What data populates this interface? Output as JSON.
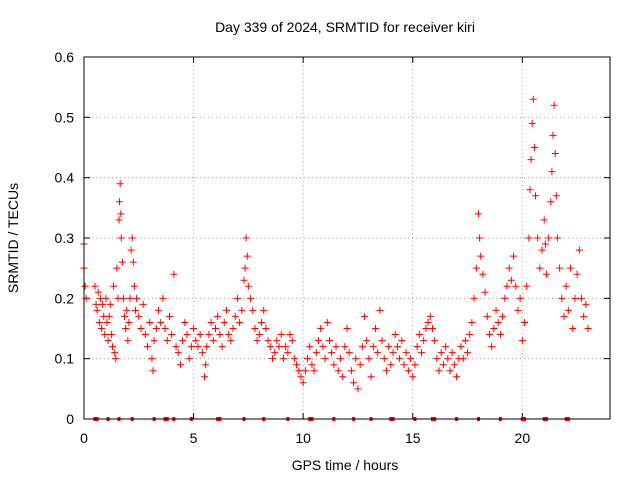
{
  "chart_data": {
    "type": "scatter",
    "title": "Day 339 of 2024, SRMTID for receiver kiri",
    "xlabel": "GPS time / hours",
    "ylabel": "SRMTID / TECUs",
    "xlim": [
      0,
      24
    ],
    "ylim": [
      0,
      0.6
    ],
    "xticks": [
      0,
      5,
      10,
      15,
      20
    ],
    "xtick_labels": [
      "0",
      "5",
      "10",
      "15",
      "20"
    ],
    "yticks": [
      0,
      0.1,
      0.2,
      0.3,
      0.4,
      0.5,
      0.6
    ],
    "ytick_labels": [
      "0",
      "0.1",
      "0.2",
      "0.3",
      "0.4",
      "0.5",
      "0.6"
    ],
    "grid": true,
    "marker": "+",
    "color": "#ff0000",
    "series": [
      {
        "name": "SRMTID",
        "points": [
          [
            0.0,
            0.25
          ],
          [
            0.0,
            0.29
          ],
          [
            0.05,
            0.22
          ],
          [
            0.1,
            0.2
          ],
          [
            0.5,
            0.22
          ],
          [
            0.55,
            0.19
          ],
          [
            0.6,
            0.18
          ],
          [
            0.65,
            0.21
          ],
          [
            0.7,
            0.16
          ],
          [
            0.75,
            0.2
          ],
          [
            0.8,
            0.15
          ],
          [
            0.85,
            0.19
          ],
          [
            0.9,
            0.17
          ],
          [
            0.95,
            0.14
          ],
          [
            1.0,
            0.2
          ],
          [
            1.05,
            0.16
          ],
          [
            1.1,
            0.13
          ],
          [
            1.15,
            0.17
          ],
          [
            1.2,
            0.19
          ],
          [
            1.25,
            0.14
          ],
          [
            1.3,
            0.12
          ],
          [
            1.35,
            0.22
          ],
          [
            1.4,
            0.11
          ],
          [
            1.45,
            0.1
          ],
          [
            1.5,
            0.25
          ],
          [
            1.55,
            0.2
          ],
          [
            1.6,
            0.33
          ],
          [
            1.62,
            0.36
          ],
          [
            1.65,
            0.39
          ],
          [
            1.68,
            0.34
          ],
          [
            1.7,
            0.3
          ],
          [
            1.75,
            0.26
          ],
          [
            1.8,
            0.2
          ],
          [
            1.85,
            0.17
          ],
          [
            1.9,
            0.15
          ],
          [
            1.95,
            0.18
          ],
          [
            2.0,
            0.13
          ],
          [
            2.05,
            0.16
          ],
          [
            2.1,
            0.2
          ],
          [
            2.15,
            0.28
          ],
          [
            2.2,
            0.3
          ],
          [
            2.25,
            0.26
          ],
          [
            2.3,
            0.22
          ],
          [
            2.35,
            0.18
          ],
          [
            2.4,
            0.2
          ],
          [
            2.5,
            0.17
          ],
          [
            2.6,
            0.15
          ],
          [
            2.7,
            0.19
          ],
          [
            2.8,
            0.14
          ],
          [
            2.9,
            0.12
          ],
          [
            3.0,
            0.16
          ],
          [
            3.1,
            0.1
          ],
          [
            3.15,
            0.08
          ],
          [
            3.2,
            0.13
          ],
          [
            3.3,
            0.15
          ],
          [
            3.4,
            0.18
          ],
          [
            3.5,
            0.16
          ],
          [
            3.6,
            0.2
          ],
          [
            3.7,
            0.15
          ],
          [
            3.8,
            0.13
          ],
          [
            3.9,
            0.17
          ],
          [
            4.0,
            0.14
          ],
          [
            4.1,
            0.24
          ],
          [
            4.2,
            0.12
          ],
          [
            4.3,
            0.11
          ],
          [
            4.4,
            0.09
          ],
          [
            4.5,
            0.13
          ],
          [
            4.6,
            0.16
          ],
          [
            4.7,
            0.14
          ],
          [
            4.8,
            0.1
          ],
          [
            4.9,
            0.12
          ],
          [
            5.0,
            0.15
          ],
          [
            5.1,
            0.13
          ],
          [
            5.2,
            0.12
          ],
          [
            5.3,
            0.14
          ],
          [
            5.4,
            0.11
          ],
          [
            5.5,
            0.07
          ],
          [
            5.55,
            0.09
          ],
          [
            5.6,
            0.12
          ],
          [
            5.7,
            0.14
          ],
          [
            5.8,
            0.16
          ],
          [
            5.9,
            0.13
          ],
          [
            6.0,
            0.15
          ],
          [
            6.1,
            0.17
          ],
          [
            6.2,
            0.14
          ],
          [
            6.3,
            0.12
          ],
          [
            6.4,
            0.16
          ],
          [
            6.5,
            0.18
          ],
          [
            6.6,
            0.14
          ],
          [
            6.7,
            0.13
          ],
          [
            6.8,
            0.15
          ],
          [
            6.9,
            0.17
          ],
          [
            7.0,
            0.2
          ],
          [
            7.1,
            0.16
          ],
          [
            7.2,
            0.18
          ],
          [
            7.3,
            0.23
          ],
          [
            7.35,
            0.25
          ],
          [
            7.4,
            0.3
          ],
          [
            7.45,
            0.27
          ],
          [
            7.5,
            0.22
          ],
          [
            7.6,
            0.2
          ],
          [
            7.7,
            0.18
          ],
          [
            7.8,
            0.15
          ],
          [
            7.9,
            0.13
          ],
          [
            8.0,
            0.14
          ],
          [
            8.1,
            0.16
          ],
          [
            8.2,
            0.18
          ],
          [
            8.3,
            0.15
          ],
          [
            8.4,
            0.13
          ],
          [
            8.5,
            0.12
          ],
          [
            8.6,
            0.1
          ],
          [
            8.7,
            0.11
          ],
          [
            8.8,
            0.13
          ],
          [
            8.9,
            0.12
          ],
          [
            9.0,
            0.14
          ],
          [
            9.1,
            0.1
          ],
          [
            9.2,
            0.12
          ],
          [
            9.3,
            0.11
          ],
          [
            9.4,
            0.14
          ],
          [
            9.5,
            0.13
          ],
          [
            9.6,
            0.1
          ],
          [
            9.7,
            0.09
          ],
          [
            9.8,
            0.08
          ],
          [
            9.9,
            0.07
          ],
          [
            10.0,
            0.06
          ],
          [
            10.1,
            0.08
          ],
          [
            10.2,
            0.1
          ],
          [
            10.3,
            0.12
          ],
          [
            10.4,
            0.09
          ],
          [
            10.5,
            0.08
          ],
          [
            10.6,
            0.11
          ],
          [
            10.7,
            0.13
          ],
          [
            10.8,
            0.15
          ],
          [
            10.9,
            0.12
          ],
          [
            11.0,
            0.1
          ],
          [
            11.1,
            0.16
          ],
          [
            11.2,
            0.13
          ],
          [
            11.3,
            0.11
          ],
          [
            11.4,
            0.09
          ],
          [
            11.5,
            0.12
          ],
          [
            11.6,
            0.08
          ],
          [
            11.7,
            0.1
          ],
          [
            11.8,
            0.07
          ],
          [
            11.9,
            0.12
          ],
          [
            12.0,
            0.15
          ],
          [
            12.1,
            0.11
          ],
          [
            12.2,
            0.08
          ],
          [
            12.3,
            0.06
          ],
          [
            12.4,
            0.1
          ],
          [
            12.5,
            0.05
          ],
          [
            12.6,
            0.09
          ],
          [
            12.7,
            0.12
          ],
          [
            12.8,
            0.17
          ],
          [
            12.9,
            0.13
          ],
          [
            13.0,
            0.1
          ],
          [
            13.1,
            0.07
          ],
          [
            13.2,
            0.12
          ],
          [
            13.3,
            0.15
          ],
          [
            13.4,
            0.11
          ],
          [
            13.5,
            0.18
          ],
          [
            13.6,
            0.13
          ],
          [
            13.7,
            0.1
          ],
          [
            13.8,
            0.08
          ],
          [
            13.9,
            0.12
          ],
          [
            14.0,
            0.09
          ],
          [
            14.1,
            0.11
          ],
          [
            14.2,
            0.14
          ],
          [
            14.3,
            0.12
          ],
          [
            14.4,
            0.1
          ],
          [
            14.5,
            0.13
          ],
          [
            14.6,
            0.09
          ],
          [
            14.7,
            0.11
          ],
          [
            14.8,
            0.08
          ],
          [
            14.9,
            0.1
          ],
          [
            15.0,
            0.07
          ],
          [
            15.1,
            0.09
          ],
          [
            15.2,
            0.12
          ],
          [
            15.3,
            0.14
          ],
          [
            15.4,
            0.11
          ],
          [
            15.5,
            0.13
          ],
          [
            15.6,
            0.15
          ],
          [
            15.7,
            0.16
          ],
          [
            15.8,
            0.17
          ],
          [
            15.9,
            0.15
          ],
          [
            16.0,
            0.13
          ],
          [
            16.1,
            0.1
          ],
          [
            16.2,
            0.08
          ],
          [
            16.3,
            0.11
          ],
          [
            16.4,
            0.09
          ],
          [
            16.5,
            0.12
          ],
          [
            16.6,
            0.1
          ],
          [
            16.7,
            0.08
          ],
          [
            16.8,
            0.11
          ],
          [
            16.9,
            0.09
          ],
          [
            17.0,
            0.07
          ],
          [
            17.1,
            0.1
          ],
          [
            17.2,
            0.12
          ],
          [
            17.3,
            0.1
          ],
          [
            17.4,
            0.13
          ],
          [
            17.5,
            0.11
          ],
          [
            17.6,
            0.14
          ],
          [
            17.7,
            0.16
          ],
          [
            17.8,
            0.2
          ],
          [
            17.9,
            0.25
          ],
          [
            18.0,
            0.34
          ],
          [
            18.05,
            0.3
          ],
          [
            18.1,
            0.27
          ],
          [
            18.2,
            0.24
          ],
          [
            18.3,
            0.21
          ],
          [
            18.4,
            0.17
          ],
          [
            18.5,
            0.14
          ],
          [
            18.6,
            0.12
          ],
          [
            18.7,
            0.15
          ],
          [
            18.8,
            0.18
          ],
          [
            18.9,
            0.16
          ],
          [
            19.0,
            0.14
          ],
          [
            19.1,
            0.17
          ],
          [
            19.2,
            0.2
          ],
          [
            19.3,
            0.22
          ],
          [
            19.4,
            0.25
          ],
          [
            19.5,
            0.23
          ],
          [
            19.6,
            0.27
          ],
          [
            19.7,
            0.22
          ],
          [
            19.8,
            0.18
          ],
          [
            19.9,
            0.2
          ],
          [
            20.0,
            0.13
          ],
          [
            20.1,
            0.16
          ],
          [
            20.2,
            0.22
          ],
          [
            20.3,
            0.3
          ],
          [
            20.35,
            0.38
          ],
          [
            20.4,
            0.43
          ],
          [
            20.45,
            0.49
          ],
          [
            20.5,
            0.53
          ],
          [
            20.55,
            0.45
          ],
          [
            20.6,
            0.37
          ],
          [
            20.7,
            0.3
          ],
          [
            20.8,
            0.25
          ],
          [
            20.9,
            0.28
          ],
          [
            21.0,
            0.33
          ],
          [
            21.05,
            0.29
          ],
          [
            21.1,
            0.24
          ],
          [
            21.2,
            0.3
          ],
          [
            21.3,
            0.36
          ],
          [
            21.35,
            0.41
          ],
          [
            21.4,
            0.47
          ],
          [
            21.45,
            0.52
          ],
          [
            21.5,
            0.44
          ],
          [
            21.55,
            0.37
          ],
          [
            21.6,
            0.3
          ],
          [
            21.7,
            0.25
          ],
          [
            21.8,
            0.2
          ],
          [
            21.9,
            0.17
          ],
          [
            22.0,
            0.22
          ],
          [
            22.1,
            0.18
          ],
          [
            22.2,
            0.25
          ],
          [
            22.3,
            0.15
          ],
          [
            22.4,
            0.2
          ],
          [
            22.5,
            0.24
          ],
          [
            22.6,
            0.28
          ],
          [
            22.7,
            0.2
          ],
          [
            22.8,
            0.17
          ],
          [
            22.9,
            0.19
          ],
          [
            23.0,
            0.15
          ]
        ]
      },
      {
        "name": "zero-level markers",
        "points": [
          [
            0.5,
            0
          ],
          [
            0.6,
            0
          ],
          [
            1.1,
            0
          ],
          [
            1.6,
            0
          ],
          [
            2.2,
            0
          ],
          [
            3.2,
            0
          ],
          [
            3.7,
            0
          ],
          [
            3.8,
            0
          ],
          [
            4.1,
            0
          ],
          [
            4.9,
            0
          ],
          [
            6.1,
            0
          ],
          [
            6.2,
            0
          ],
          [
            7.3,
            0
          ],
          [
            8.2,
            0
          ],
          [
            9.3,
            0
          ],
          [
            10.3,
            0
          ],
          [
            10.4,
            0
          ],
          [
            11.4,
            0
          ],
          [
            12.3,
            0
          ],
          [
            13.1,
            0
          ],
          [
            14.0,
            0
          ],
          [
            14.1,
            0
          ],
          [
            15.1,
            0
          ],
          [
            15.9,
            0
          ],
          [
            16.0,
            0
          ],
          [
            17.0,
            0
          ],
          [
            18.0,
            0
          ],
          [
            19.0,
            0
          ],
          [
            20.0,
            0
          ],
          [
            20.1,
            0
          ],
          [
            21.0,
            0
          ],
          [
            21.1,
            0
          ],
          [
            22.0,
            0
          ],
          [
            22.1,
            0
          ]
        ]
      }
    ]
  }
}
